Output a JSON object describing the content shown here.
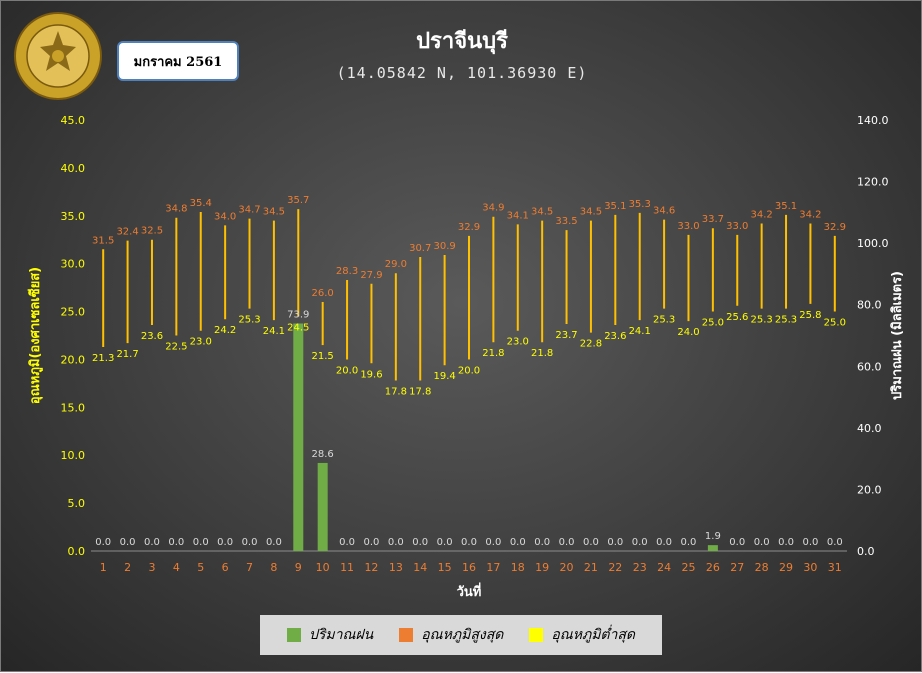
{
  "title": "ปราจีนบุรี",
  "coords": "(14.05842 N, 101.36930 E)",
  "month_label": "มกราคม 2561",
  "logo_text": "กรมอุตุนิยมวิทยา METEOROLOGICAL DEPARTMENT",
  "colors": {
    "rain": "#70ad47",
    "tmax": "#ed7d31",
    "tmin": "#ffc000",
    "left_axis": "#ffff00",
    "x_tick": "#ed7d31",
    "tmin_label": "#ffff00",
    "tmax_label": "#ed7d31",
    "rain_label": "#d9d9d9"
  },
  "chart_data": {
    "type": "bar",
    "title": "ปราจีนบุรี",
    "xlabel": "วันที่",
    "ylabel_left": "อุณหภูมิ(องศาเซลเซียส)",
    "ylabel_right": "ปริมาณฝน (มิลลิเมตร)",
    "ylim_left": [
      0,
      45
    ],
    "ylim_right": [
      0,
      140
    ],
    "yticks_left": [
      "0.0",
      "5.0",
      "10.0",
      "15.0",
      "20.0",
      "25.0",
      "30.0",
      "35.0",
      "40.0",
      "45.0"
    ],
    "yticks_right": [
      "0.0",
      "20.0",
      "40.0",
      "60.0",
      "80.0",
      "100.0",
      "120.0",
      "140.0"
    ],
    "categories": [
      "1",
      "2",
      "3",
      "4",
      "5",
      "6",
      "7",
      "8",
      "9",
      "10",
      "11",
      "12",
      "13",
      "14",
      "15",
      "16",
      "17",
      "18",
      "19",
      "20",
      "21",
      "22",
      "23",
      "24",
      "25",
      "26",
      "27",
      "28",
      "29",
      "30",
      "31"
    ],
    "series": [
      {
        "name": "ปริมาณฝน",
        "axis": "right",
        "kind": "bar",
        "values": [
          0.0,
          0.0,
          0.0,
          0.0,
          0.0,
          0.0,
          0.0,
          0.0,
          73.9,
          28.6,
          0.0,
          0.0,
          0.0,
          0.0,
          0.0,
          0.0,
          0.0,
          0.0,
          0.0,
          0.0,
          0.0,
          0.0,
          0.0,
          0.0,
          0.0,
          1.9,
          0.0,
          0.0,
          0.0,
          0.0,
          0.0
        ]
      },
      {
        "name": "อุณหภูมิสูงสุด",
        "axis": "left",
        "kind": "high",
        "values": [
          31.5,
          32.4,
          32.5,
          34.8,
          35.4,
          34.0,
          34.7,
          34.5,
          35.7,
          26.0,
          28.3,
          27.9,
          29.0,
          30.7,
          30.9,
          32.9,
          34.9,
          34.1,
          34.5,
          33.5,
          34.5,
          35.1,
          35.3,
          34.6,
          33.0,
          33.7,
          33.0,
          34.2,
          35.1,
          34.2,
          32.9
        ]
      },
      {
        "name": "อุณหภูมิต่ำสุด",
        "axis": "left",
        "kind": "low",
        "values": [
          21.3,
          21.7,
          23.6,
          22.5,
          23.0,
          24.2,
          25.3,
          24.1,
          24.5,
          21.5,
          20.0,
          19.6,
          17.8,
          17.8,
          19.4,
          20.0,
          21.8,
          23.0,
          21.8,
          23.7,
          22.8,
          23.6,
          24.1,
          25.3,
          24.0,
          25.0,
          25.6,
          25.3,
          25.3,
          25.8,
          25.0
        ]
      }
    ],
    "legend_position": "bottom",
    "grid": false
  }
}
